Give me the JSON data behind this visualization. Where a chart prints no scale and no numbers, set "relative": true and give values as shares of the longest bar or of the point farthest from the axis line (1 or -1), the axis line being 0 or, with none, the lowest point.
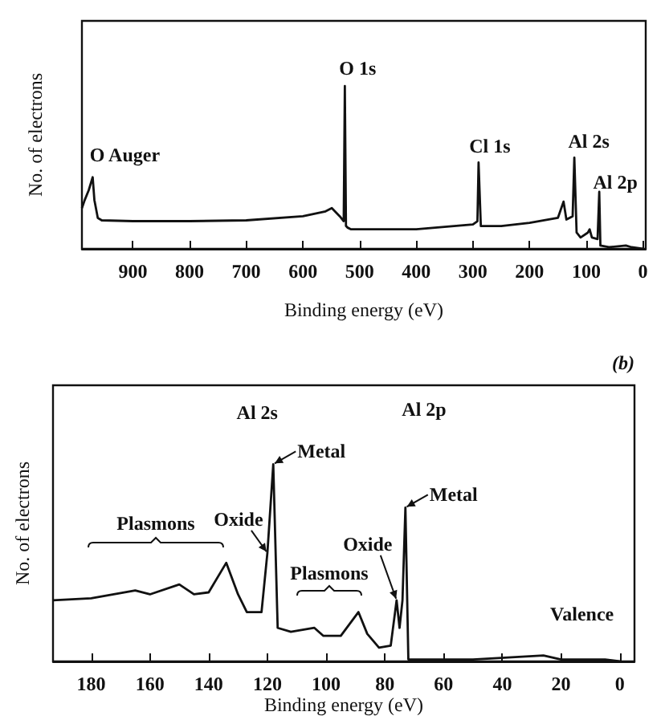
{
  "chart_data": [
    {
      "type": "line",
      "xlabel": "Binding energy (eV)",
      "ylabel": "No. of electrons",
      "relative": true,
      "tick_labels": "x",
      "xlim": [
        990,
        -5
      ],
      "xticks": [
        900,
        800,
        700,
        600,
        500,
        400,
        300,
        200,
        100,
        0
      ],
      "series": [
        {
          "color": "#111111",
          "x": [
            990,
            985,
            978,
            971,
            968,
            962,
            955,
            900,
            800,
            700,
            600,
            560,
            549,
            535,
            528,
            526,
            524,
            521,
            515,
            400,
            300,
            292,
            290,
            286,
            250,
            200,
            150,
            140,
            135,
            124,
            121,
            117,
            110,
            97,
            94,
            90,
            80,
            77,
            75,
            60,
            30,
            20,
            0
          ],
          "values": [
            0.25,
            0.3,
            0.36,
            0.44,
            0.3,
            0.19,
            0.175,
            0.17,
            0.17,
            0.175,
            0.2,
            0.23,
            0.25,
            0.2,
            0.17,
            1.0,
            0.14,
            0.13,
            0.12,
            0.12,
            0.15,
            0.17,
            0.53,
            0.14,
            0.14,
            0.16,
            0.19,
            0.29,
            0.18,
            0.2,
            0.56,
            0.1,
            0.07,
            0.1,
            0.12,
            0.07,
            0.06,
            0.35,
            0.02,
            0.01,
            0.02,
            0.01,
            0.0
          ]
        }
      ],
      "annotations": [
        {
          "text": "O Auger",
          "x": 971,
          "y": 0.44
        },
        {
          "text": "O 1s",
          "x": 526,
          "y": 1.0
        },
        {
          "text": "Cl 1s",
          "x": 290,
          "y": 0.53
        },
        {
          "text": "Al 2s",
          "x": 121,
          "y": 0.56
        },
        {
          "text": "Al 2p",
          "x": 77,
          "y": 0.35
        }
      ]
    },
    {
      "type": "line",
      "title": "(b)",
      "xlabel": "Binding energy (eV)",
      "ylabel": "No. of electrons",
      "relative": true,
      "tick_labels": "x",
      "xlim": [
        193,
        -5
      ],
      "xticks": [
        180,
        160,
        140,
        120,
        100,
        80,
        60,
        40,
        20,
        0
      ],
      "series": [
        {
          "color": "#111111",
          "x": [
            193,
            180,
            165,
            160,
            150,
            145,
            140,
            134,
            130,
            127,
            122,
            120,
            118,
            116.5,
            112,
            104,
            101,
            95,
            89,
            86,
            82,
            78,
            76,
            75,
            74,
            73,
            72,
            70,
            50,
            26,
            20,
            5,
            0
          ],
          "values": [
            0.31,
            0.32,
            0.36,
            0.34,
            0.39,
            0.34,
            0.35,
            0.5,
            0.34,
            0.25,
            0.25,
            0.55,
            1.0,
            0.17,
            0.15,
            0.17,
            0.13,
            0.13,
            0.25,
            0.14,
            0.07,
            0.08,
            0.31,
            0.17,
            0.31,
            0.78,
            0.01,
            0.01,
            0.01,
            0.03,
            0.01,
            0.01,
            0.0
          ]
        }
      ],
      "annotations": [
        {
          "text": "Al 2s",
          "x": 118,
          "y": 1.0
        },
        "Al 2p",
        {
          "text": "Metal",
          "x": 118,
          "y": 1.0
        },
        {
          "text": "Metal",
          "x": 73,
          "y": 0.78
        },
        {
          "text": "Oxide",
          "x": 120,
          "y": 0.55
        },
        {
          "text": "Oxide",
          "x": 76,
          "y": 0.31
        },
        "Plasmons",
        "Plasmons",
        {
          "text": "Valence",
          "x": 26,
          "y": 0.03
        }
      ]
    }
  ]
}
